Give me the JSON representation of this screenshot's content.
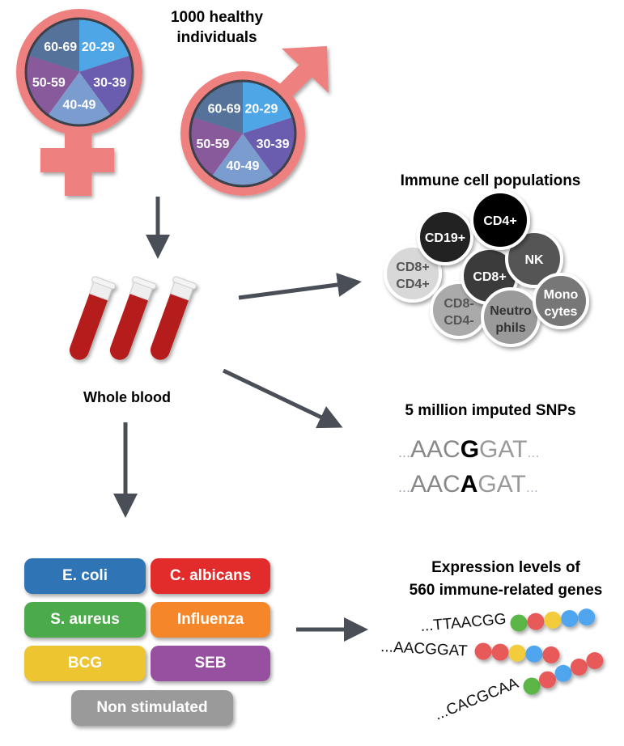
{
  "title": [
    "1000 healthy",
    "individuals"
  ],
  "age_groups": [
    {
      "label": "20-29",
      "color": "#4fa6e6"
    },
    {
      "label": "30-39",
      "color": "#6a5caf"
    },
    {
      "label": "40-49",
      "color": "#7a9ccf"
    },
    {
      "label": "50-59",
      "color": "#885a9c"
    },
    {
      "label": "60-69",
      "color": "#54729a"
    }
  ],
  "symbol_color": "#ee8080",
  "whole_blood": "Whole blood",
  "immune": {
    "title": "Immune cell populations",
    "cells": [
      {
        "l1": "CD8+",
        "l2": "CD4+",
        "color": "#d8d8d8",
        "text": "#555"
      },
      {
        "l1": "CD19+",
        "l2": "",
        "color": "#222222",
        "text": "#fff"
      },
      {
        "l1": "CD8-",
        "l2": "CD4-",
        "color": "#aaaaaa",
        "text": "#555"
      },
      {
        "l1": "CD8+",
        "l2": "",
        "color": "#3a3a3a",
        "text": "#fff"
      },
      {
        "l1": "NK",
        "l2": "",
        "color": "#555555",
        "text": "#fff"
      },
      {
        "l1": "CD4+",
        "l2": "",
        "color": "#000000",
        "text": "#fff"
      },
      {
        "l1": "Neutro",
        "l2": "phils",
        "color": "#9a9a9a",
        "text": "#333"
      },
      {
        "l1": "Mono",
        "l2": "cytes",
        "color": "#777777",
        "text": "#fff"
      }
    ]
  },
  "snps": {
    "title": "5 million imputed SNPs",
    "seq1": {
      "pre": "AAC",
      "alt": "G",
      "post": "GAT"
    },
    "seq2": {
      "pre": "AAC",
      "alt": "A",
      "post": "GAT"
    },
    "dots": "..."
  },
  "stimuli": [
    {
      "label": "E. coli",
      "color": "#2f74b5"
    },
    {
      "label": "C. albicans",
      "color": "#e22b2b"
    },
    {
      "label": "S. aureus",
      "color": "#4bab4b"
    },
    {
      "label": "Influenza",
      "color": "#f5872a"
    },
    {
      "label": "BCG",
      "color": "#ecc530"
    },
    {
      "label": "SEB",
      "color": "#974fa0"
    },
    {
      "label": "Non stimulated",
      "color": "#9a9a9a"
    }
  ],
  "expression": {
    "title": [
      "Expression levels of",
      "560 immune-related genes"
    ],
    "seqs": [
      "...TTAACGG",
      "...AACGGAT",
      "...CACGCAA"
    ],
    "bead_colors": [
      [
        "#5cb646",
        "#e85a5a",
        "#f2cc3a",
        "#4fa6ee",
        "#4fa6ee"
      ],
      [
        "#e85a5a",
        "#e85a5a",
        "#f2cc3a",
        "#4fa6ee",
        "#e85a5a"
      ],
      [
        "#5cb646",
        "#e85a5a",
        "#4fa6ee",
        "#e85a5a",
        "#e85a5a"
      ]
    ]
  }
}
